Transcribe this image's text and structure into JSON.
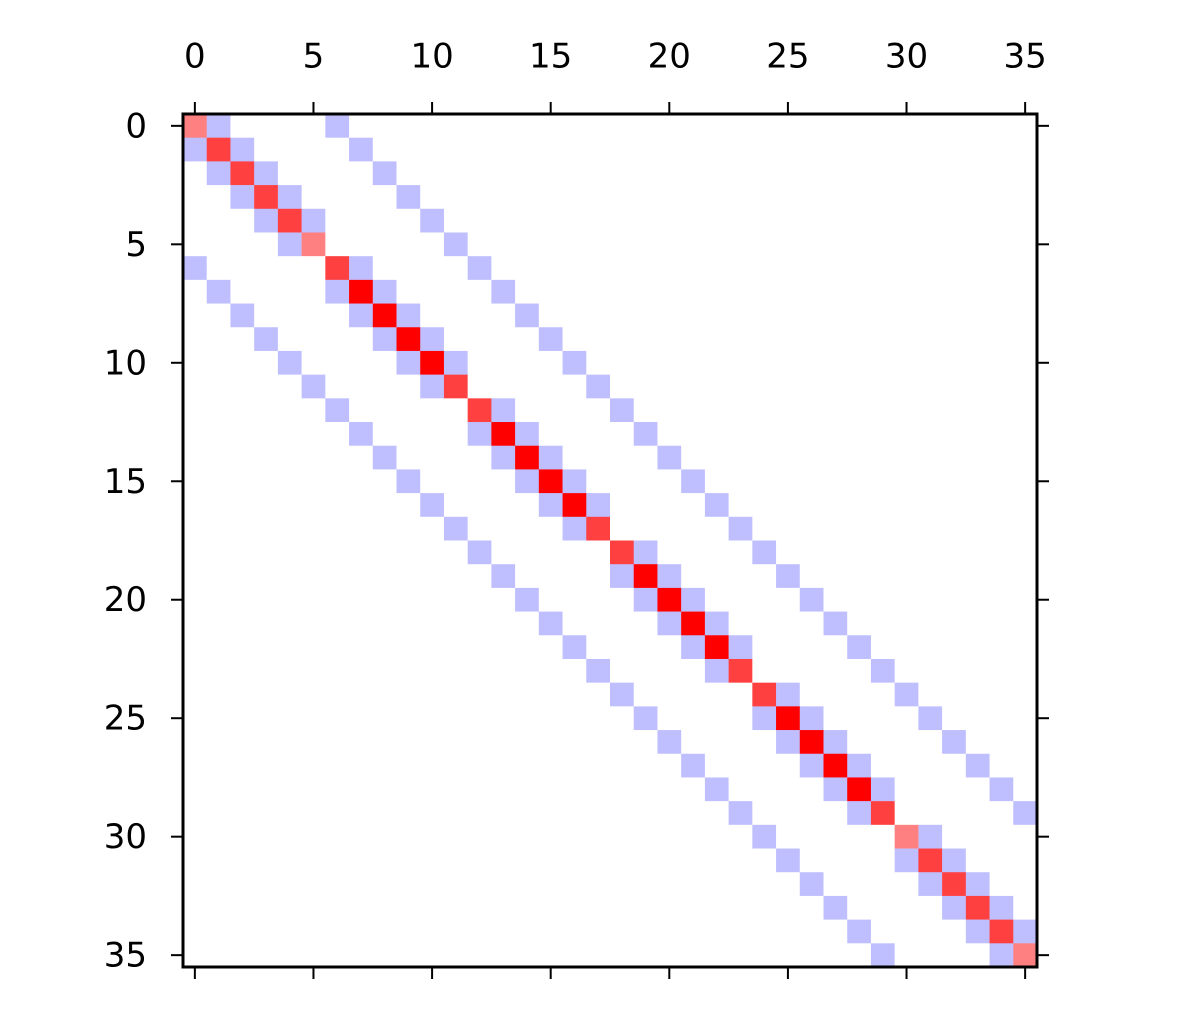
{
  "chart_data": {
    "type": "matrix",
    "colormap": "bwr",
    "clim": [
      -4,
      4
    ],
    "xlim": [
      -0.5,
      35.5
    ],
    "ylim": [
      35.5,
      -0.5
    ],
    "xticks": [
      0,
      5,
      10,
      15,
      20,
      25,
      30,
      35
    ],
    "yticks": [
      0,
      5,
      10,
      15,
      20,
      25,
      30,
      35
    ],
    "values": [
      [
        2,
        -1,
        0,
        0,
        0,
        0,
        -1,
        0,
        0,
        0,
        0,
        0,
        0,
        0,
        0,
        0,
        0,
        0,
        0,
        0,
        0,
        0,
        0,
        0,
        0,
        0,
        0,
        0,
        0,
        0,
        0,
        0,
        0,
        0,
        0,
        0
      ],
      [
        -1,
        3,
        -1,
        0,
        0,
        0,
        0,
        -1,
        0,
        0,
        0,
        0,
        0,
        0,
        0,
        0,
        0,
        0,
        0,
        0,
        0,
        0,
        0,
        0,
        0,
        0,
        0,
        0,
        0,
        0,
        0,
        0,
        0,
        0,
        0,
        0
      ],
      [
        0,
        -1,
        3,
        -1,
        0,
        0,
        0,
        0,
        -1,
        0,
        0,
        0,
        0,
        0,
        0,
        0,
        0,
        0,
        0,
        0,
        0,
        0,
        0,
        0,
        0,
        0,
        0,
        0,
        0,
        0,
        0,
        0,
        0,
        0,
        0,
        0
      ],
      [
        0,
        0,
        -1,
        3,
        -1,
        0,
        0,
        0,
        0,
        -1,
        0,
        0,
        0,
        0,
        0,
        0,
        0,
        0,
        0,
        0,
        0,
        0,
        0,
        0,
        0,
        0,
        0,
        0,
        0,
        0,
        0,
        0,
        0,
        0,
        0,
        0
      ],
      [
        0,
        0,
        0,
        -1,
        3,
        -1,
        0,
        0,
        0,
        0,
        -1,
        0,
        0,
        0,
        0,
        0,
        0,
        0,
        0,
        0,
        0,
        0,
        0,
        0,
        0,
        0,
        0,
        0,
        0,
        0,
        0,
        0,
        0,
        0,
        0,
        0
      ],
      [
        0,
        0,
        0,
        0,
        -1,
        2,
        0,
        0,
        0,
        0,
        0,
        -1,
        0,
        0,
        0,
        0,
        0,
        0,
        0,
        0,
        0,
        0,
        0,
        0,
        0,
        0,
        0,
        0,
        0,
        0,
        0,
        0,
        0,
        0,
        0,
        0
      ],
      [
        -1,
        0,
        0,
        0,
        0,
        0,
        3,
        -1,
        0,
        0,
        0,
        0,
        -1,
        0,
        0,
        0,
        0,
        0,
        0,
        0,
        0,
        0,
        0,
        0,
        0,
        0,
        0,
        0,
        0,
        0,
        0,
        0,
        0,
        0,
        0,
        0
      ],
      [
        0,
        -1,
        0,
        0,
        0,
        0,
        -1,
        4,
        -1,
        0,
        0,
        0,
        0,
        -1,
        0,
        0,
        0,
        0,
        0,
        0,
        0,
        0,
        0,
        0,
        0,
        0,
        0,
        0,
        0,
        0,
        0,
        0,
        0,
        0,
        0,
        0
      ],
      [
        0,
        0,
        -1,
        0,
        0,
        0,
        0,
        -1,
        4,
        -1,
        0,
        0,
        0,
        0,
        -1,
        0,
        0,
        0,
        0,
        0,
        0,
        0,
        0,
        0,
        0,
        0,
        0,
        0,
        0,
        0,
        0,
        0,
        0,
        0,
        0,
        0
      ],
      [
        0,
        0,
        0,
        -1,
        0,
        0,
        0,
        0,
        -1,
        4,
        -1,
        0,
        0,
        0,
        0,
        -1,
        0,
        0,
        0,
        0,
        0,
        0,
        0,
        0,
        0,
        0,
        0,
        0,
        0,
        0,
        0,
        0,
        0,
        0,
        0,
        0
      ],
      [
        0,
        0,
        0,
        0,
        -1,
        0,
        0,
        0,
        0,
        -1,
        4,
        -1,
        0,
        0,
        0,
        0,
        -1,
        0,
        0,
        0,
        0,
        0,
        0,
        0,
        0,
        0,
        0,
        0,
        0,
        0,
        0,
        0,
        0,
        0,
        0,
        0
      ],
      [
        0,
        0,
        0,
        0,
        0,
        -1,
        0,
        0,
        0,
        0,
        -1,
        3,
        0,
        0,
        0,
        0,
        0,
        -1,
        0,
        0,
        0,
        0,
        0,
        0,
        0,
        0,
        0,
        0,
        0,
        0,
        0,
        0,
        0,
        0,
        0,
        0
      ],
      [
        0,
        0,
        0,
        0,
        0,
        0,
        -1,
        0,
        0,
        0,
        0,
        0,
        3,
        -1,
        0,
        0,
        0,
        0,
        -1,
        0,
        0,
        0,
        0,
        0,
        0,
        0,
        0,
        0,
        0,
        0,
        0,
        0,
        0,
        0,
        0,
        0
      ],
      [
        0,
        0,
        0,
        0,
        0,
        0,
        0,
        -1,
        0,
        0,
        0,
        0,
        -1,
        4,
        -1,
        0,
        0,
        0,
        0,
        -1,
        0,
        0,
        0,
        0,
        0,
        0,
        0,
        0,
        0,
        0,
        0,
        0,
        0,
        0,
        0,
        0
      ],
      [
        0,
        0,
        0,
        0,
        0,
        0,
        0,
        0,
        -1,
        0,
        0,
        0,
        0,
        -1,
        4,
        -1,
        0,
        0,
        0,
        0,
        -1,
        0,
        0,
        0,
        0,
        0,
        0,
        0,
        0,
        0,
        0,
        0,
        0,
        0,
        0,
        0
      ],
      [
        0,
        0,
        0,
        0,
        0,
        0,
        0,
        0,
        0,
        -1,
        0,
        0,
        0,
        0,
        -1,
        4,
        -1,
        0,
        0,
        0,
        0,
        -1,
        0,
        0,
        0,
        0,
        0,
        0,
        0,
        0,
        0,
        0,
        0,
        0,
        0,
        0
      ],
      [
        0,
        0,
        0,
        0,
        0,
        0,
        0,
        0,
        0,
        0,
        -1,
        0,
        0,
        0,
        0,
        -1,
        4,
        -1,
        0,
        0,
        0,
        0,
        -1,
        0,
        0,
        0,
        0,
        0,
        0,
        0,
        0,
        0,
        0,
        0,
        0,
        0
      ],
      [
        0,
        0,
        0,
        0,
        0,
        0,
        0,
        0,
        0,
        0,
        0,
        -1,
        0,
        0,
        0,
        0,
        -1,
        3,
        0,
        0,
        0,
        0,
        0,
        -1,
        0,
        0,
        0,
        0,
        0,
        0,
        0,
        0,
        0,
        0,
        0,
        0
      ],
      [
        0,
        0,
        0,
        0,
        0,
        0,
        0,
        0,
        0,
        0,
        0,
        0,
        -1,
        0,
        0,
        0,
        0,
        0,
        3,
        -1,
        0,
        0,
        0,
        0,
        -1,
        0,
        0,
        0,
        0,
        0,
        0,
        0,
        0,
        0,
        0,
        0
      ],
      [
        0,
        0,
        0,
        0,
        0,
        0,
        0,
        0,
        0,
        0,
        0,
        0,
        0,
        -1,
        0,
        0,
        0,
        0,
        -1,
        4,
        -1,
        0,
        0,
        0,
        0,
        -1,
        0,
        0,
        0,
        0,
        0,
        0,
        0,
        0,
        0,
        0
      ],
      [
        0,
        0,
        0,
        0,
        0,
        0,
        0,
        0,
        0,
        0,
        0,
        0,
        0,
        0,
        -1,
        0,
        0,
        0,
        0,
        -1,
        4,
        -1,
        0,
        0,
        0,
        0,
        -1,
        0,
        0,
        0,
        0,
        0,
        0,
        0,
        0,
        0
      ],
      [
        0,
        0,
        0,
        0,
        0,
        0,
        0,
        0,
        0,
        0,
        0,
        0,
        0,
        0,
        0,
        -1,
        0,
        0,
        0,
        0,
        -1,
        4,
        -1,
        0,
        0,
        0,
        0,
        -1,
        0,
        0,
        0,
        0,
        0,
        0,
        0,
        0
      ],
      [
        0,
        0,
        0,
        0,
        0,
        0,
        0,
        0,
        0,
        0,
        0,
        0,
        0,
        0,
        0,
        0,
        -1,
        0,
        0,
        0,
        0,
        -1,
        4,
        -1,
        0,
        0,
        0,
        0,
        -1,
        0,
        0,
        0,
        0,
        0,
        0,
        0
      ],
      [
        0,
        0,
        0,
        0,
        0,
        0,
        0,
        0,
        0,
        0,
        0,
        0,
        0,
        0,
        0,
        0,
        0,
        -1,
        0,
        0,
        0,
        0,
        -1,
        3,
        0,
        0,
        0,
        0,
        0,
        -1,
        0,
        0,
        0,
        0,
        0,
        0
      ],
      [
        0,
        0,
        0,
        0,
        0,
        0,
        0,
        0,
        0,
        0,
        0,
        0,
        0,
        0,
        0,
        0,
        0,
        0,
        -1,
        0,
        0,
        0,
        0,
        0,
        3,
        -1,
        0,
        0,
        0,
        0,
        -1,
        0,
        0,
        0,
        0,
        0
      ],
      [
        0,
        0,
        0,
        0,
        0,
        0,
        0,
        0,
        0,
        0,
        0,
        0,
        0,
        0,
        0,
        0,
        0,
        0,
        0,
        -1,
        0,
        0,
        0,
        0,
        -1,
        4,
        -1,
        0,
        0,
        0,
        0,
        -1,
        0,
        0,
        0,
        0
      ],
      [
        0,
        0,
        0,
        0,
        0,
        0,
        0,
        0,
        0,
        0,
        0,
        0,
        0,
        0,
        0,
        0,
        0,
        0,
        0,
        0,
        -1,
        0,
        0,
        0,
        0,
        -1,
        4,
        -1,
        0,
        0,
        0,
        0,
        -1,
        0,
        0,
        0
      ],
      [
        0,
        0,
        0,
        0,
        0,
        0,
        0,
        0,
        0,
        0,
        0,
        0,
        0,
        0,
        0,
        0,
        0,
        0,
        0,
        0,
        0,
        -1,
        0,
        0,
        0,
        0,
        -1,
        4,
        -1,
        0,
        0,
        0,
        0,
        -1,
        0,
        0
      ],
      [
        0,
        0,
        0,
        0,
        0,
        0,
        0,
        0,
        0,
        0,
        0,
        0,
        0,
        0,
        0,
        0,
        0,
        0,
        0,
        0,
        0,
        0,
        -1,
        0,
        0,
        0,
        0,
        -1,
        4,
        -1,
        0,
        0,
        0,
        0,
        -1,
        0
      ],
      [
        0,
        0,
        0,
        0,
        0,
        0,
        0,
        0,
        0,
        0,
        0,
        0,
        0,
        0,
        0,
        0,
        0,
        0,
        0,
        0,
        0,
        0,
        0,
        -1,
        0,
        0,
        0,
        0,
        -1,
        3,
        0,
        0,
        0,
        0,
        0,
        -1
      ],
      [
        0,
        0,
        0,
        0,
        0,
        0,
        0,
        0,
        0,
        0,
        0,
        0,
        0,
        0,
        0,
        0,
        0,
        0,
        0,
        0,
        0,
        0,
        0,
        0,
        -1,
        0,
        0,
        0,
        0,
        0,
        2,
        -1,
        0,
        0,
        0,
        0
      ],
      [
        0,
        0,
        0,
        0,
        0,
        0,
        0,
        0,
        0,
        0,
        0,
        0,
        0,
        0,
        0,
        0,
        0,
        0,
        0,
        0,
        0,
        0,
        0,
        0,
        0,
        -1,
        0,
        0,
        0,
        0,
        -1,
        3,
        -1,
        0,
        0,
        0
      ],
      [
        0,
        0,
        0,
        0,
        0,
        0,
        0,
        0,
        0,
        0,
        0,
        0,
        0,
        0,
        0,
        0,
        0,
        0,
        0,
        0,
        0,
        0,
        0,
        0,
        0,
        0,
        -1,
        0,
        0,
        0,
        0,
        -1,
        3,
        -1,
        0,
        0
      ],
      [
        0,
        0,
        0,
        0,
        0,
        0,
        0,
        0,
        0,
        0,
        0,
        0,
        0,
        0,
        0,
        0,
        0,
        0,
        0,
        0,
        0,
        0,
        0,
        0,
        0,
        0,
        0,
        -1,
        0,
        0,
        0,
        0,
        -1,
        3,
        -1,
        0
      ],
      [
        0,
        0,
        0,
        0,
        0,
        0,
        0,
        0,
        0,
        0,
        0,
        0,
        0,
        0,
        0,
        0,
        0,
        0,
        0,
        0,
        0,
        0,
        0,
        0,
        0,
        0,
        0,
        0,
        -1,
        0,
        0,
        0,
        0,
        -1,
        3,
        -1
      ],
      [
        0,
        0,
        0,
        0,
        0,
        0,
        0,
        0,
        0,
        0,
        0,
        0,
        0,
        0,
        0,
        0,
        0,
        0,
        0,
        0,
        0,
        0,
        0,
        0,
        0,
        0,
        0,
        0,
        0,
        -1,
        0,
        0,
        0,
        0,
        -1,
        2
      ]
    ]
  }
}
